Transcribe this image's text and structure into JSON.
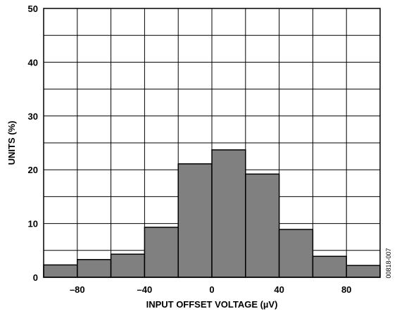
{
  "chart_data": {
    "type": "bar",
    "xlabel": "INPUT OFFSET VOLTAGE (µV)",
    "ylabel": "UNITS (%)",
    "xlim": [
      -100,
      100
    ],
    "ylim": [
      0,
      50
    ],
    "x_ticks": [
      {
        "value": -80,
        "label": "–80"
      },
      {
        "value": -40,
        "label": "–40"
      },
      {
        "value": 0,
        "label": "0"
      },
      {
        "value": 40,
        "label": "40"
      },
      {
        "value": 80,
        "label": "80"
      }
    ],
    "y_ticks": [
      {
        "value": 0,
        "label": "0"
      },
      {
        "value": 10,
        "label": "10"
      },
      {
        "value": 20,
        "label": "20"
      },
      {
        "value": 30,
        "label": "30"
      },
      {
        "value": 40,
        "label": "40"
      },
      {
        "value": 50,
        "label": "50"
      }
    ],
    "x_grid_step": 20,
    "y_grid_step": 5,
    "grid": true,
    "bin_edges": [
      -100,
      -80,
      -60,
      -40,
      -20,
      0,
      20,
      40,
      60,
      80,
      100
    ],
    "values": [
      2.3,
      3.3,
      4.3,
      9.3,
      21.1,
      23.7,
      19.2,
      8.9,
      3.9,
      2.2
    ],
    "bar_color": "#808080",
    "figure_id": "00818-007"
  }
}
